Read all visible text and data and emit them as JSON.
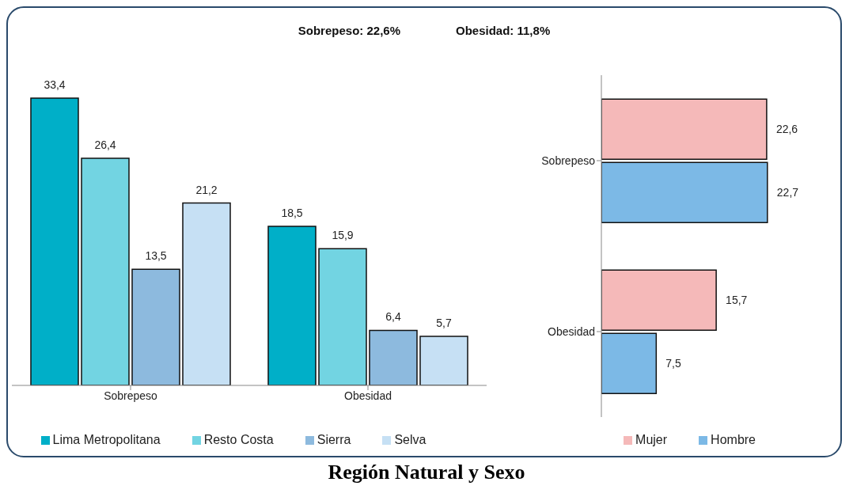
{
  "chart_data": [
    {
      "type": "bar",
      "annotations": [
        "Sobrepeso: 22,6%",
        "Obesidad: 11,8%"
      ],
      "categories": [
        "Sobrepeso",
        "Obesidad"
      ],
      "series": [
        {
          "name": "Lima Metropolitana",
          "color": "#00afc8",
          "values": [
            33.4,
            18.5
          ],
          "value_labels": [
            "33,4",
            "18,5"
          ]
        },
        {
          "name": "Resto Costa",
          "color": "#72d4e2",
          "values": [
            26.4,
            15.9
          ],
          "value_labels": [
            "26,4",
            "15,9"
          ]
        },
        {
          "name": "Sierra",
          "color": "#8dbade",
          "values": [
            13.5,
            6.4
          ],
          "value_labels": [
            "13,5",
            "6,4"
          ]
        },
        {
          "name": "Selva",
          "color": "#c6e0f4",
          "values": [
            21.2,
            5.7
          ],
          "value_labels": [
            "21,2",
            "5,7"
          ]
        }
      ],
      "legend": "bottom"
    },
    {
      "type": "bar",
      "orientation": "horizontal",
      "annotations": [
        "Región Natural y Sexo"
      ],
      "categories": [
        "Sobrepeso",
        "Obesidad"
      ],
      "series": [
        {
          "name": "Mujer",
          "color": "#f5b9b9",
          "values": [
            22.6,
            15.7
          ],
          "value_labels": [
            "22,6",
            "15,7"
          ]
        },
        {
          "name": "Hombre",
          "color": "#7cb9e6",
          "values": [
            22.7,
            7.5
          ],
          "value_labels": [
            "22,7",
            "7,5"
          ]
        }
      ],
      "legend": "bottom right"
    }
  ]
}
